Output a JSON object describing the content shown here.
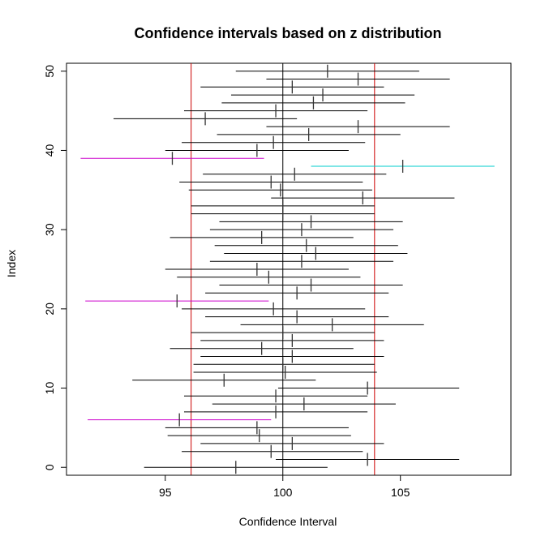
{
  "chart_data": {
    "type": "scatter",
    "title": "Confidence intervals based on z distribution",
    "xlabel": "Confidence Interval",
    "ylabel": "Index",
    "xlim": [
      90.8,
      109.7
    ],
    "ylim": [
      -1,
      51
    ],
    "x_ticks": [
      95,
      100,
      105
    ],
    "y_ticks": [
      0,
      10,
      20,
      30,
      40,
      50
    ],
    "reference_lines": {
      "center": 100,
      "bounds": [
        96.1,
        103.9
      ],
      "center_color": "#000000",
      "bounds_color": "#cc0000"
    },
    "colors": {
      "interval": "#000000",
      "miss_low": "#cc00cc",
      "miss_high": "#00cccc"
    },
    "intervals": [
      {
        "index": 0,
        "lower": 94.1,
        "mean": 98.0,
        "upper": 101.9
      },
      {
        "index": 1,
        "lower": 99.7,
        "mean": 103.6,
        "upper": 107.5
      },
      {
        "index": 2,
        "lower": 95.7,
        "mean": 99.5,
        "upper": 103.4
      },
      {
        "index": 3,
        "lower": 96.5,
        "mean": 100.4,
        "upper": 104.3
      },
      {
        "index": 4,
        "lower": 95.1,
        "mean": 99.0,
        "upper": 102.9
      },
      {
        "index": 5,
        "lower": 95.0,
        "mean": 98.9,
        "upper": 102.8
      },
      {
        "index": 6,
        "lower": 91.7,
        "mean": 95.6,
        "upper": 99.5,
        "status": "low"
      },
      {
        "index": 7,
        "lower": 95.8,
        "mean": 99.7,
        "upper": 103.6
      },
      {
        "index": 8,
        "lower": 97.0,
        "mean": 100.9,
        "upper": 104.8
      },
      {
        "index": 9,
        "lower": 95.8,
        "mean": 99.7,
        "upper": 103.6
      },
      {
        "index": 10,
        "lower": 99.8,
        "mean": 103.6,
        "upper": 107.5
      },
      {
        "index": 11,
        "lower": 93.6,
        "mean": 97.5,
        "upper": 101.4
      },
      {
        "index": 12,
        "lower": 96.2,
        "mean": 100.1,
        "upper": 104.0
      },
      {
        "index": 13,
        "lower": 96.2,
        "mean": 100.0,
        "upper": 103.9
      },
      {
        "index": 14,
        "lower": 96.5,
        "mean": 100.4,
        "upper": 104.3
      },
      {
        "index": 15,
        "lower": 95.2,
        "mean": 99.1,
        "upper": 103.0
      },
      {
        "index": 16,
        "lower": 96.5,
        "mean": 100.4,
        "upper": 104.3
      },
      {
        "index": 17,
        "lower": 96.1,
        "mean": 100.0,
        "upper": 103.9
      },
      {
        "index": 18,
        "lower": 98.2,
        "mean": 102.1,
        "upper": 106.0
      },
      {
        "index": 19,
        "lower": 96.7,
        "mean": 100.6,
        "upper": 104.5
      },
      {
        "index": 20,
        "lower": 95.7,
        "mean": 99.6,
        "upper": 103.5
      },
      {
        "index": 21,
        "lower": 91.6,
        "mean": 95.5,
        "upper": 99.4,
        "status": "low"
      },
      {
        "index": 22,
        "lower": 96.7,
        "mean": 100.6,
        "upper": 104.5
      },
      {
        "index": 23,
        "lower": 97.3,
        "mean": 101.2,
        "upper": 105.1
      },
      {
        "index": 24,
        "lower": 95.5,
        "mean": 99.4,
        "upper": 103.3
      },
      {
        "index": 25,
        "lower": 95.0,
        "mean": 98.9,
        "upper": 102.8
      },
      {
        "index": 26,
        "lower": 96.9,
        "mean": 100.8,
        "upper": 104.7
      },
      {
        "index": 27,
        "lower": 97.5,
        "mean": 101.4,
        "upper": 105.3
      },
      {
        "index": 28,
        "lower": 97.1,
        "mean": 101.0,
        "upper": 104.9
      },
      {
        "index": 29,
        "lower": 95.2,
        "mean": 99.1,
        "upper": 103.0
      },
      {
        "index": 30,
        "lower": 96.9,
        "mean": 100.8,
        "upper": 104.7
      },
      {
        "index": 31,
        "lower": 97.3,
        "mean": 101.2,
        "upper": 105.1
      },
      {
        "index": 32,
        "lower": 96.1,
        "mean": 100.0,
        "upper": 103.9
      },
      {
        "index": 33,
        "lower": 96.1,
        "mean": 100.0,
        "upper": 103.9
      },
      {
        "index": 34,
        "lower": 99.5,
        "mean": 103.4,
        "upper": 107.3
      },
      {
        "index": 35,
        "lower": 96.0,
        "mean": 99.9,
        "upper": 103.8
      },
      {
        "index": 36,
        "lower": 95.6,
        "mean": 99.5,
        "upper": 103.4
      },
      {
        "index": 37,
        "lower": 96.6,
        "mean": 100.5,
        "upper": 104.4
      },
      {
        "index": 38,
        "lower": 101.2,
        "mean": 105.1,
        "upper": 109.0,
        "status": "high"
      },
      {
        "index": 39,
        "lower": 91.4,
        "mean": 95.3,
        "upper": 99.2,
        "status": "low"
      },
      {
        "index": 40,
        "lower": 95.0,
        "mean": 98.9,
        "upper": 102.8
      },
      {
        "index": 41,
        "lower": 95.7,
        "mean": 99.6,
        "upper": 103.5
      },
      {
        "index": 42,
        "lower": 97.2,
        "mean": 101.1,
        "upper": 105.0
      },
      {
        "index": 43,
        "lower": 99.3,
        "mean": 103.2,
        "upper": 107.1
      },
      {
        "index": 44,
        "lower": 92.8,
        "mean": 96.7,
        "upper": 100.6
      },
      {
        "index": 45,
        "lower": 95.8,
        "mean": 99.7,
        "upper": 103.6
      },
      {
        "index": 46,
        "lower": 97.4,
        "mean": 101.3,
        "upper": 105.2
      },
      {
        "index": 47,
        "lower": 97.8,
        "mean": 101.7,
        "upper": 105.6
      },
      {
        "index": 48,
        "lower": 96.5,
        "mean": 100.4,
        "upper": 104.3
      },
      {
        "index": 49,
        "lower": 99.3,
        "mean": 103.2,
        "upper": 107.1
      },
      {
        "index": 50,
        "lower": 98.0,
        "mean": 101.9,
        "upper": 105.8
      }
    ]
  }
}
